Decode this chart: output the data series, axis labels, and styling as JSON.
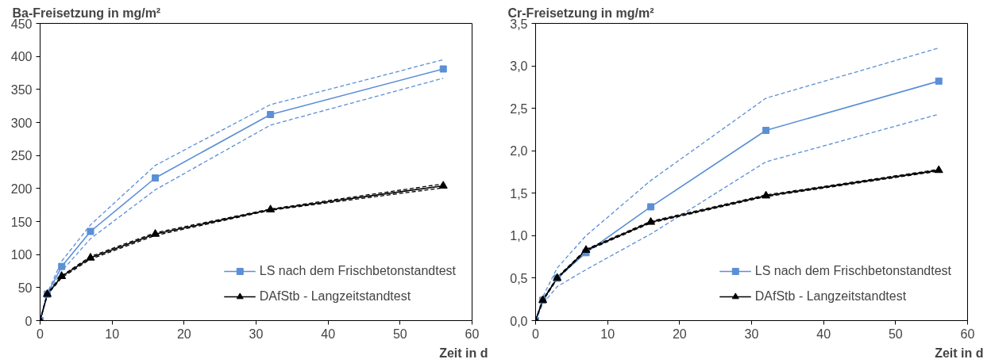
{
  "chart_data": [
    {
      "type": "line",
      "title": "Ba-Freisetzung in mg/m²",
      "xlabel": "Zeit in d",
      "x": [
        0,
        1,
        3,
        7,
        16,
        32,
        56
      ],
      "xlim": [
        0,
        60
      ],
      "xticks": [
        0,
        10,
        20,
        30,
        40,
        50,
        60
      ],
      "ylim": [
        0,
        450
      ],
      "yticks": [
        0,
        50,
        100,
        150,
        200,
        250,
        300,
        350,
        400,
        450
      ],
      "grid": false,
      "legend": "bottom right",
      "line_style": "solid",
      "series": [
        {
          "name": "LS nach dem Frischbetonstandtest",
          "color": "#5b8fd6",
          "marker": "square",
          "values": [
            0,
            40,
            82,
            135,
            216,
            312,
            381
          ]
        },
        {
          "name": "DAfStb - Langzeitstandtest",
          "color": "#000000",
          "marker": "triangle",
          "values": [
            0,
            40,
            67,
            95,
            131,
            168,
            204
          ]
        },
        {
          "color": "#5b8fd6",
          "line_style": "dashed",
          "values": [
            0,
            38,
            75,
            124,
            198,
            296,
            367
          ]
        },
        {
          "color": "#5b8fd6",
          "line_style": "dashed",
          "values": [
            0,
            42,
            90,
            145,
            235,
            327,
            395
          ]
        },
        {
          "color": "#000000",
          "line_style": "dashed",
          "values": [
            0,
            39,
            65,
            93,
            129,
            167,
            201
          ]
        },
        {
          "color": "#000000",
          "line_style": "dashed",
          "values": [
            0,
            41,
            68,
            97,
            133,
            169,
            207
          ]
        }
      ]
    },
    {
      "type": "line",
      "title": "Cr-Freisetzung in mg/m²",
      "xlabel": "Zeit in d",
      "x": [
        0,
        1,
        3,
        7,
        16,
        32,
        56
      ],
      "xlim": [
        0,
        60
      ],
      "xticks": [
        0,
        10,
        20,
        30,
        40,
        50,
        60
      ],
      "ylim": [
        0,
        3.5
      ],
      "yticks": [
        {
          "value": 0,
          "label": "0,0"
        },
        {
          "value": 0.5,
          "label": "0,5"
        },
        {
          "value": 1,
          "label": "1,0"
        },
        {
          "value": 1.5,
          "label": "1,5"
        },
        {
          "value": 2,
          "label": "2,0"
        },
        {
          "value": 2.5,
          "label": "2,5"
        },
        {
          "value": 3,
          "label": "3,0"
        },
        {
          "value": 3.5,
          "label": "3,5"
        }
      ],
      "grid": false,
      "legend": "bottom right",
      "line_style": "solid",
      "series": [
        {
          "name": "LS nach dem Frischbetonstandtest",
          "color": "#5b8fd6",
          "marker": "square",
          "values": [
            0,
            0.24,
            0.5,
            0.8,
            1.34,
            2.24,
            2.82
          ]
        },
        {
          "name": "DAfStb - Langzeitstandtest",
          "color": "#000000",
          "marker": "triangle",
          "values": [
            0,
            0.24,
            0.5,
            0.83,
            1.16,
            1.47,
            1.77
          ]
        },
        {
          "color": "#5b8fd6",
          "line_style": "dashed",
          "values": [
            0,
            0.2,
            0.4,
            0.6,
            1.02,
            1.87,
            2.43
          ]
        },
        {
          "color": "#5b8fd6",
          "line_style": "dashed",
          "values": [
            0,
            0.28,
            0.62,
            1.0,
            1.65,
            2.62,
            3.21
          ]
        },
        {
          "color": "#000000",
          "line_style": "dashed",
          "values": [
            0,
            0.23,
            0.49,
            0.82,
            1.15,
            1.46,
            1.76
          ]
        },
        {
          "color": "#000000",
          "line_style": "dashed",
          "values": [
            0,
            0.25,
            0.51,
            0.84,
            1.17,
            1.48,
            1.78
          ]
        }
      ]
    }
  ]
}
